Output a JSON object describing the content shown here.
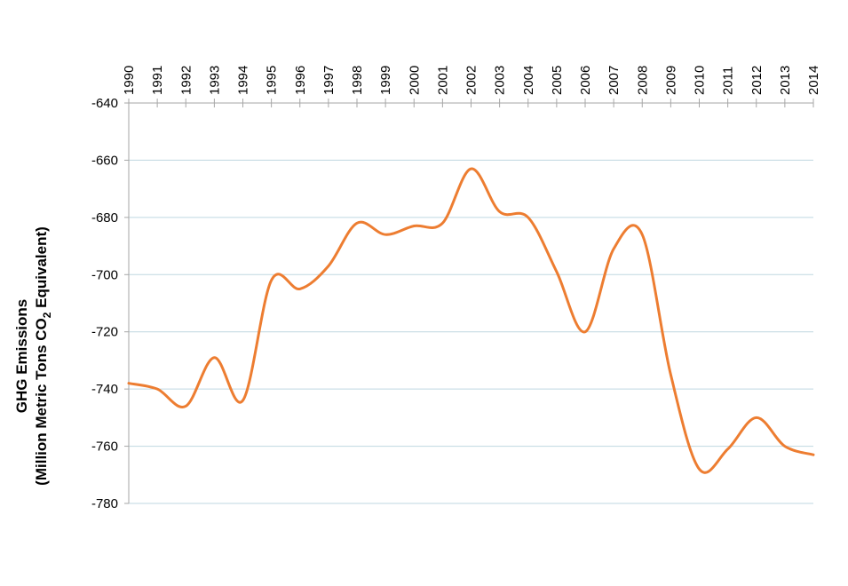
{
  "chart_data": {
    "type": "line",
    "title": "",
    "xlabel": "",
    "ylabel_line1": "GHG Emissions",
    "ylabel_line2_parts": [
      "(Million Metric Tons CO",
      "2",
      " Equivalent)"
    ],
    "x": [
      "1990",
      "1991",
      "1992",
      "1993",
      "1994",
      "1995",
      "1996",
      "1997",
      "1998",
      "1999",
      "2000",
      "2001",
      "2002",
      "2003",
      "2004",
      "2005",
      "2006",
      "2007",
      "2008",
      "2009",
      "2010",
      "2011",
      "2012",
      "2013",
      "2014"
    ],
    "series": [
      {
        "values": [
          -738,
          -740,
          -746,
          -729,
          -744,
          -702,
          -705,
          -697,
          -682,
          -686,
          -683,
          -682,
          -663,
          -678,
          -680,
          -699,
          -720,
          -691,
          -686,
          -735,
          -768,
          -761,
          -750,
          -760,
          -763
        ],
        "color": "#ed7d31"
      }
    ],
    "y_ticks": [
      "-640",
      "-660",
      "-680",
      "-700",
      "-720",
      "-740",
      "-760",
      "-780"
    ],
    "ylim": [
      -780,
      -640
    ],
    "x_axis_position": "top",
    "x_tick_rotation": "vertical",
    "grid": "horizontal",
    "legend": "none",
    "grid_color": "#bfd7e0",
    "axis_color": "#a6a6a6"
  }
}
